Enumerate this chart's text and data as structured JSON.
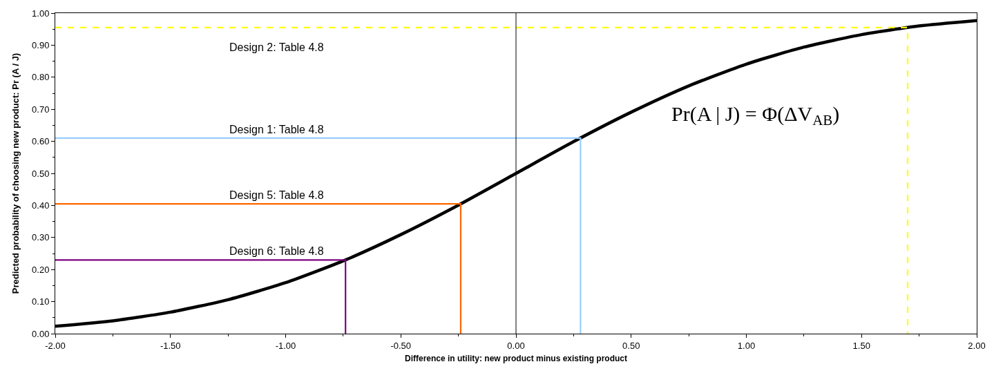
{
  "chart_data": {
    "type": "line",
    "xlabel": "Difference in utility: new product minus existing product",
    "ylabel": "Predicted probability of choosing new product: Pr (A / J)",
    "xlim": [
      -2,
      2
    ],
    "ylim": [
      0,
      1
    ],
    "xticks": [
      {
        "value": -2,
        "label": "-2.00"
      },
      {
        "value": -1.5,
        "label": "-1.50"
      },
      {
        "value": -1,
        "label": "-1.00"
      },
      {
        "value": -0.5,
        "label": "-0.50"
      },
      {
        "value": 0,
        "label": "0.00"
      },
      {
        "value": 0.5,
        "label": "0.50"
      },
      {
        "value": 1,
        "label": "1.00"
      },
      {
        "value": 1.5,
        "label": "1.50"
      },
      {
        "value": 2,
        "label": "2.00"
      }
    ],
    "yticks": [
      {
        "value": 0,
        "label": "0.00"
      },
      {
        "value": 0.1,
        "label": "0.10"
      },
      {
        "value": 0.2,
        "label": "0.20"
      },
      {
        "value": 0.3,
        "label": "0.30"
      },
      {
        "value": 0.4,
        "label": "0.40"
      },
      {
        "value": 0.5,
        "label": "0.50"
      },
      {
        "value": 0.6,
        "label": "0.60"
      },
      {
        "value": 0.7,
        "label": "0.70"
      },
      {
        "value": 0.8,
        "label": "0.80"
      },
      {
        "value": 0.9,
        "label": "0.90"
      },
      {
        "value": 1,
        "label": "1.00"
      }
    ],
    "legend": false,
    "marker": "none",
    "series": [
      {
        "color": "#000000",
        "x": [
          -2,
          -1.75,
          -1.5,
          -1.25,
          -1,
          -0.75,
          -0.5,
          -0.25,
          0,
          0.25,
          0.5,
          0.75,
          1,
          1.25,
          1.5,
          1.75,
          2
        ],
        "values": [
          0.023,
          0.04,
          0.067,
          0.106,
          0.159,
          0.227,
          0.309,
          0.401,
          0.5,
          0.599,
          0.691,
          0.773,
          0.841,
          0.894,
          0.933,
          0.96,
          0.977
        ]
      },
      {
        "name": "Design 2: Table 4.8",
        "color": "#ffff00",
        "line_style": "dashed",
        "x": [
          -2,
          1.7,
          1.7
        ],
        "values": [
          0.955,
          0.955,
          0
        ]
      },
      {
        "name": "Design 1: Table 4.8",
        "color": "#99ccff",
        "x": [
          -2,
          0.28,
          0.28
        ],
        "values": [
          0.61,
          0.61,
          0
        ]
      },
      {
        "name": "Design 5: Table 4.8",
        "color": "#ff6600",
        "x": [
          -2,
          -0.24,
          -0.24
        ],
        "values": [
          0.405,
          0.405,
          0
        ]
      },
      {
        "name": "Design 6: Table 4.8",
        "color": "#800080",
        "x": [
          -2,
          -0.74,
          -0.74
        ],
        "values": [
          0.23,
          0.23,
          0
        ]
      }
    ],
    "ref_lines": [
      {
        "axis": "x",
        "value": 0,
        "color": "#000000"
      }
    ],
    "annotations": [
      "Pr(A | J) = Φ(ΔV$_{AB}$)"
    ]
  }
}
